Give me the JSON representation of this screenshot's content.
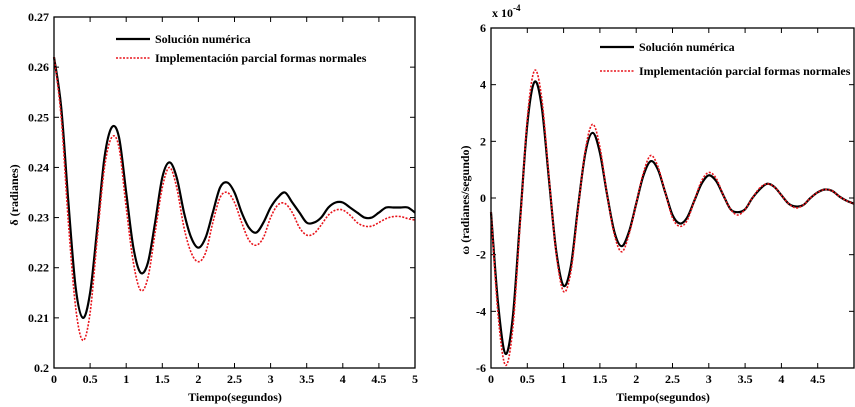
{
  "colors": {
    "numeric": "#000000",
    "partial": "#e8141b"
  },
  "chart_data": [
    {
      "type": "line",
      "xlabel": "Tiempo(segundos)",
      "ylabel": "δ (radianes)",
      "xlim": [
        0,
        5
      ],
      "ylim": [
        0.2,
        0.27
      ],
      "xticks": [
        "0",
        "0.5",
        "1",
        "1.5",
        "2",
        "2.5",
        "3",
        "3.5",
        "4",
        "4.5",
        "5"
      ],
      "yticks": [
        "0.2",
        "0.21",
        "0.22",
        "0.23",
        "0.24",
        "0.25",
        "0.26",
        "0.27"
      ],
      "legend_position": "top",
      "grid": false,
      "series": [
        {
          "name": "Solución numérica",
          "color": "#000000",
          "style": "solid",
          "x": [
            0,
            0.1,
            0.2,
            0.3,
            0.4,
            0.5,
            0.6,
            0.7,
            0.8,
            0.9,
            1.0,
            1.1,
            1.2,
            1.3,
            1.4,
            1.5,
            1.6,
            1.7,
            1.8,
            1.9,
            2.0,
            2.1,
            2.2,
            2.3,
            2.4,
            2.5,
            2.6,
            2.7,
            2.8,
            2.9,
            3.0,
            3.1,
            3.2,
            3.3,
            3.4,
            3.5,
            3.6,
            3.7,
            3.8,
            3.9,
            4.0,
            4.1,
            4.2,
            4.3,
            4.4,
            4.5,
            4.6,
            4.7,
            4.8,
            4.9,
            5.0
          ],
          "y": [
            0.262,
            0.252,
            0.233,
            0.216,
            0.21,
            0.215,
            0.228,
            0.242,
            0.248,
            0.246,
            0.235,
            0.224,
            0.219,
            0.221,
            0.229,
            0.238,
            0.241,
            0.238,
            0.231,
            0.226,
            0.224,
            0.226,
            0.231,
            0.236,
            0.237,
            0.235,
            0.231,
            0.228,
            0.227,
            0.229,
            0.232,
            0.234,
            0.235,
            0.233,
            0.231,
            0.229,
            0.229,
            0.23,
            0.232,
            0.233,
            0.233,
            0.232,
            0.231,
            0.23,
            0.23,
            0.231,
            0.232,
            0.232,
            0.232,
            0.232,
            0.231
          ]
        },
        {
          "name": "Implementación parcial formas normales",
          "color": "#e8141b",
          "style": "dotted",
          "x": [
            0,
            0.1,
            0.2,
            0.3,
            0.4,
            0.5,
            0.6,
            0.7,
            0.8,
            0.9,
            1.0,
            1.1,
            1.2,
            1.3,
            1.4,
            1.5,
            1.6,
            1.7,
            1.8,
            1.9,
            2.0,
            2.1,
            2.2,
            2.3,
            2.4,
            2.5,
            2.6,
            2.7,
            2.8,
            2.9,
            3.0,
            3.1,
            3.2,
            3.3,
            3.4,
            3.5,
            3.6,
            3.7,
            3.8,
            3.9,
            4.0,
            4.1,
            4.2,
            4.3,
            4.4,
            4.5,
            4.6,
            4.7,
            4.8,
            4.9,
            5.0
          ],
          "y": [
            0.262,
            0.25,
            0.229,
            0.212,
            0.2055,
            0.211,
            0.226,
            0.24,
            0.246,
            0.244,
            0.232,
            0.221,
            0.2155,
            0.218,
            0.227,
            0.236,
            0.24,
            0.236,
            0.228,
            0.223,
            0.2212,
            0.223,
            0.229,
            0.234,
            0.235,
            0.233,
            0.229,
            0.2255,
            0.2245,
            0.226,
            0.23,
            0.2325,
            0.2328,
            0.231,
            0.228,
            0.2265,
            0.2268,
            0.2285,
            0.2305,
            0.2315,
            0.2315,
            0.2305,
            0.229,
            0.2283,
            0.2283,
            0.229,
            0.2298,
            0.2302,
            0.2302,
            0.2298,
            0.2295
          ]
        }
      ]
    },
    {
      "type": "line",
      "xlabel": "Tiempo(segundos)",
      "ylabel": "ω (radianes/segundo)",
      "exponent_label": "x 10",
      "exponent_power": "-4",
      "xlim": [
        0,
        5
      ],
      "ylim": [
        -6,
        6
      ],
      "xticks": [
        "0",
        "0.5",
        "1",
        "1.5",
        "2",
        "2.5",
        "3",
        "3.5",
        "4",
        "4.5"
      ],
      "yticks": [
        "-6",
        "-4",
        "-2",
        "0",
        "2",
        "4",
        "6"
      ],
      "legend_position": "top",
      "grid": false,
      "series": [
        {
          "name": "Solución numérica",
          "color": "#000000",
          "style": "solid",
          "x": [
            0,
            0.1,
            0.2,
            0.3,
            0.4,
            0.5,
            0.6,
            0.7,
            0.8,
            0.9,
            1.0,
            1.1,
            1.2,
            1.3,
            1.4,
            1.5,
            1.6,
            1.7,
            1.8,
            1.9,
            2.0,
            2.1,
            2.2,
            2.3,
            2.4,
            2.5,
            2.6,
            2.7,
            2.8,
            2.9,
            3.0,
            3.1,
            3.2,
            3.3,
            3.4,
            3.5,
            3.6,
            3.7,
            3.8,
            3.9,
            4.0,
            4.1,
            4.2,
            4.3,
            4.4,
            4.5,
            4.6,
            4.7,
            4.8,
            4.9,
            5.0
          ],
          "y": [
            -0.5,
            -3.8,
            -5.5,
            -4.2,
            -0.8,
            2.6,
            4.1,
            3.2,
            0.6,
            -1.9,
            -3.1,
            -2.4,
            -0.3,
            1.6,
            2.3,
            1.6,
            0.1,
            -1.2,
            -1.7,
            -1.2,
            -0.2,
            0.8,
            1.3,
            1.0,
            0.2,
            -0.6,
            -0.9,
            -0.7,
            -0.1,
            0.5,
            0.8,
            0.6,
            0.1,
            -0.4,
            -0.5,
            -0.4,
            0.0,
            0.3,
            0.5,
            0.4,
            0.1,
            -0.2,
            -0.3,
            -0.25,
            0.0,
            0.2,
            0.3,
            0.25,
            0.05,
            -0.1,
            -0.2
          ]
        },
        {
          "name": "Implementación parcial formas normales",
          "color": "#e8141b",
          "style": "dotted",
          "x": [
            0,
            0.1,
            0.2,
            0.3,
            0.4,
            0.5,
            0.6,
            0.7,
            0.8,
            0.9,
            1.0,
            1.1,
            1.2,
            1.3,
            1.4,
            1.5,
            1.6,
            1.7,
            1.8,
            1.9,
            2.0,
            2.1,
            2.2,
            2.3,
            2.4,
            2.5,
            2.6,
            2.7,
            2.8,
            2.9,
            3.0,
            3.1,
            3.2,
            3.3,
            3.4,
            3.5,
            3.6,
            3.7,
            3.8,
            3.9,
            4.0,
            4.1,
            4.2,
            4.3,
            4.4,
            4.5,
            4.6,
            4.7,
            4.8,
            4.9,
            5.0
          ],
          "y": [
            -0.5,
            -4.2,
            -5.9,
            -4.6,
            -1.0,
            2.8,
            4.5,
            3.5,
            0.7,
            -2.0,
            -3.3,
            -2.6,
            -0.4,
            1.7,
            2.6,
            1.8,
            0.1,
            -1.3,
            -1.9,
            -1.3,
            -0.2,
            0.9,
            1.5,
            1.1,
            0.2,
            -0.7,
            -1.0,
            -0.8,
            -0.1,
            0.6,
            0.9,
            0.7,
            0.1,
            -0.4,
            -0.6,
            -0.4,
            0.0,
            0.35,
            0.5,
            0.4,
            0.1,
            -0.2,
            -0.35,
            -0.25,
            0.0,
            0.2,
            0.3,
            0.25,
            0.05,
            -0.1,
            -0.2
          ]
        }
      ]
    }
  ]
}
